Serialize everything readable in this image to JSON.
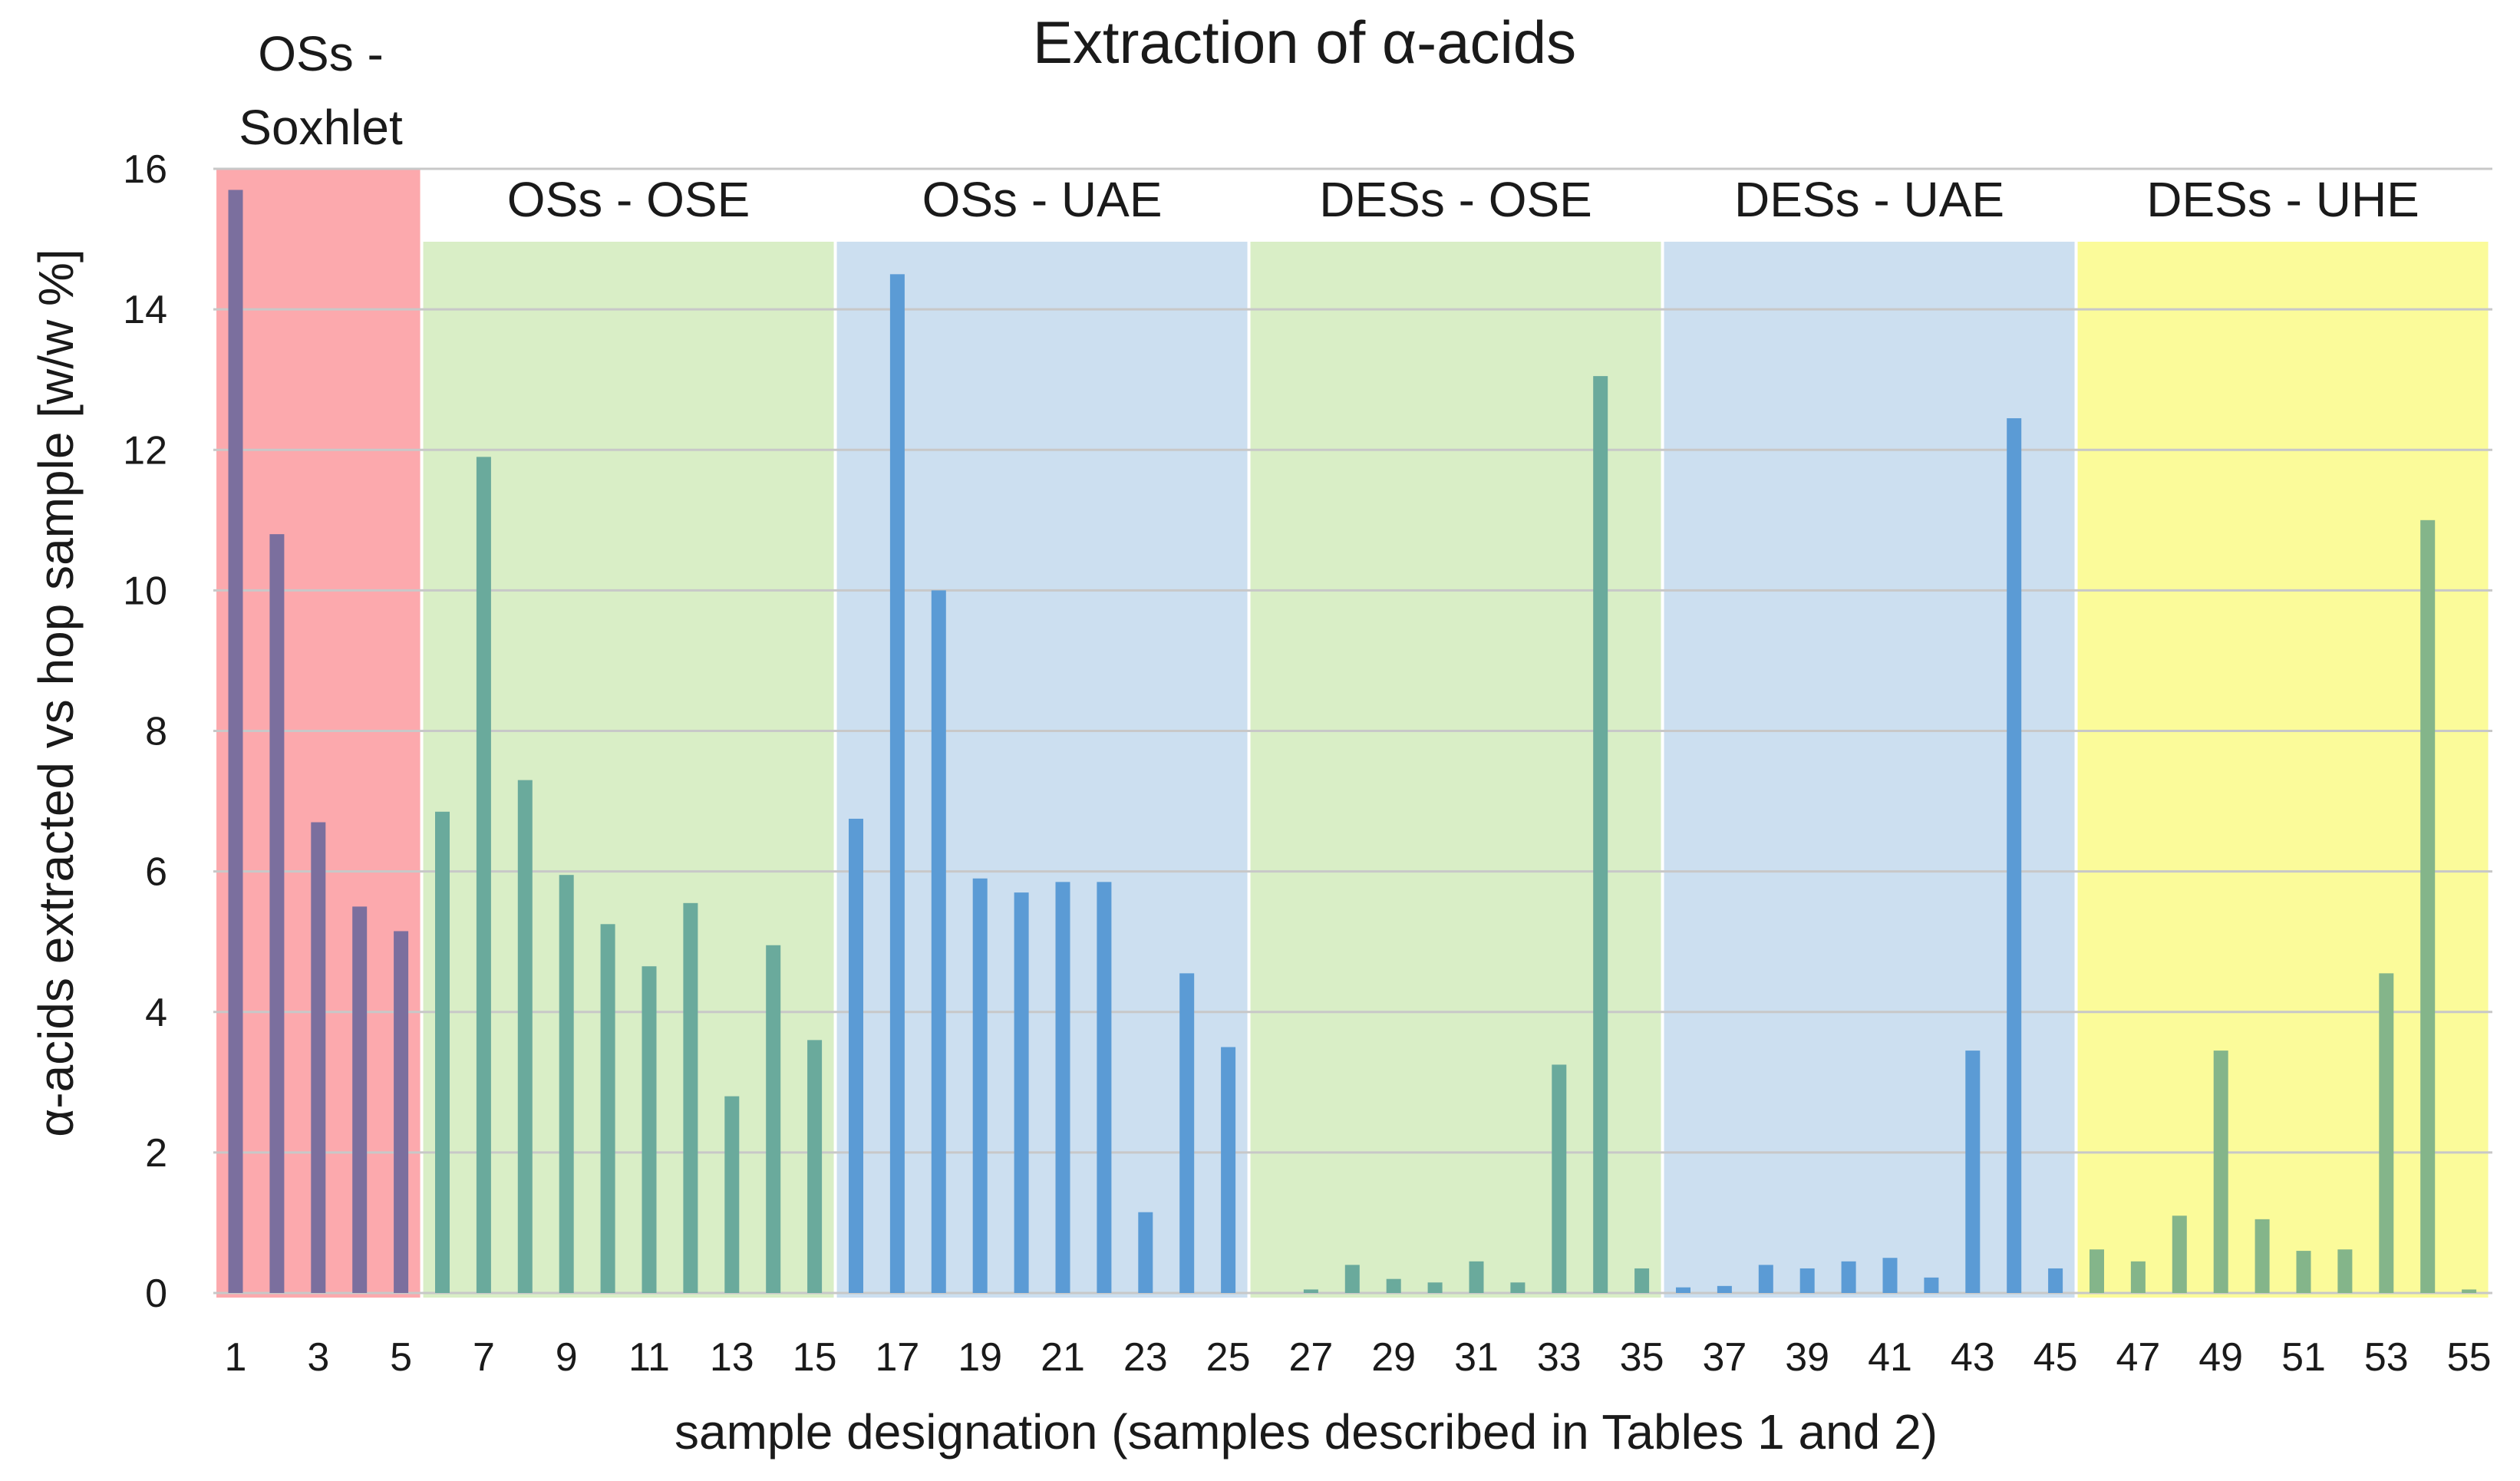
{
  "chart_data": {
    "type": "bar",
    "title": "Extraction of α-acids",
    "xlabel": "sample designation (samples described in Tables 1 and 2)",
    "ylabel": "α-acids extracted vs hop sample [w/w %]",
    "ylim": [
      0,
      16
    ],
    "yticks": [
      "0",
      "2",
      "4",
      "6",
      "8",
      "10",
      "12",
      "14",
      "16"
    ],
    "xticks": [
      "1",
      "3",
      "5",
      "7",
      "9",
      "11",
      "13",
      "15",
      "17",
      "19",
      "21",
      "23",
      "25",
      "27",
      "29",
      "31",
      "33",
      "35",
      "37",
      "39",
      "41",
      "43",
      "45",
      "47",
      "49",
      "51",
      "53",
      "55"
    ],
    "groups": [
      {
        "label_lines": [
          "OSs -",
          "Soxhlet"
        ],
        "start": 1,
        "end": 5,
        "bg": "#fca9ad",
        "bar_color": "#7b6f9e"
      },
      {
        "label_lines": [
          "OSs - OSE"
        ],
        "start": 6,
        "end": 15,
        "bg": "#d9eec6",
        "bar_color": "#6aaa9c"
      },
      {
        "label_lines": [
          "OSs - UAE"
        ],
        "start": 16,
        "end": 25,
        "bg": "#ccdff0",
        "bar_color": "#5b9bd5"
      },
      {
        "label_lines": [
          "DESs - OSE"
        ],
        "start": 26,
        "end": 35,
        "bg": "#d9eec6",
        "bar_color": "#6aaa9c"
      },
      {
        "label_lines": [
          "DESs - UAE"
        ],
        "start": 36,
        "end": 45,
        "bg": "#ccdff0",
        "bar_color": "#5b9bd5"
      },
      {
        "label_lines": [
          "DESs - UHE"
        ],
        "start": 46,
        "end": 55,
        "bg": "#fbfb9a",
        "bar_color": "#84b58a"
      }
    ],
    "samples": [
      1,
      2,
      3,
      4,
      5,
      6,
      7,
      8,
      9,
      10,
      11,
      12,
      13,
      14,
      15,
      16,
      17,
      18,
      19,
      20,
      21,
      22,
      23,
      24,
      25,
      26,
      27,
      28,
      29,
      30,
      31,
      32,
      33,
      34,
      35,
      36,
      37,
      38,
      39,
      40,
      41,
      42,
      43,
      44,
      45,
      46,
      47,
      48,
      49,
      50,
      51,
      52,
      53,
      54,
      55
    ],
    "values": [
      15.7,
      10.8,
      6.7,
      5.5,
      5.15,
      6.85,
      11.9,
      7.3,
      5.95,
      5.25,
      4.65,
      5.55,
      2.8,
      4.95,
      3.6,
      6.75,
      14.5,
      10.0,
      5.9,
      5.7,
      5.85,
      5.85,
      1.15,
      4.55,
      3.5,
      0,
      0.05,
      0.4,
      0.2,
      0.15,
      0.45,
      0.15,
      3.25,
      13.05,
      0.35,
      0.08,
      0.1,
      0.4,
      0.35,
      0.45,
      0.5,
      0.22,
      3.45,
      12.45,
      0.35,
      0.62,
      0.45,
      1.1,
      3.45,
      1.05,
      0.6,
      0.62,
      4.55,
      11.0,
      0.05
    ]
  }
}
